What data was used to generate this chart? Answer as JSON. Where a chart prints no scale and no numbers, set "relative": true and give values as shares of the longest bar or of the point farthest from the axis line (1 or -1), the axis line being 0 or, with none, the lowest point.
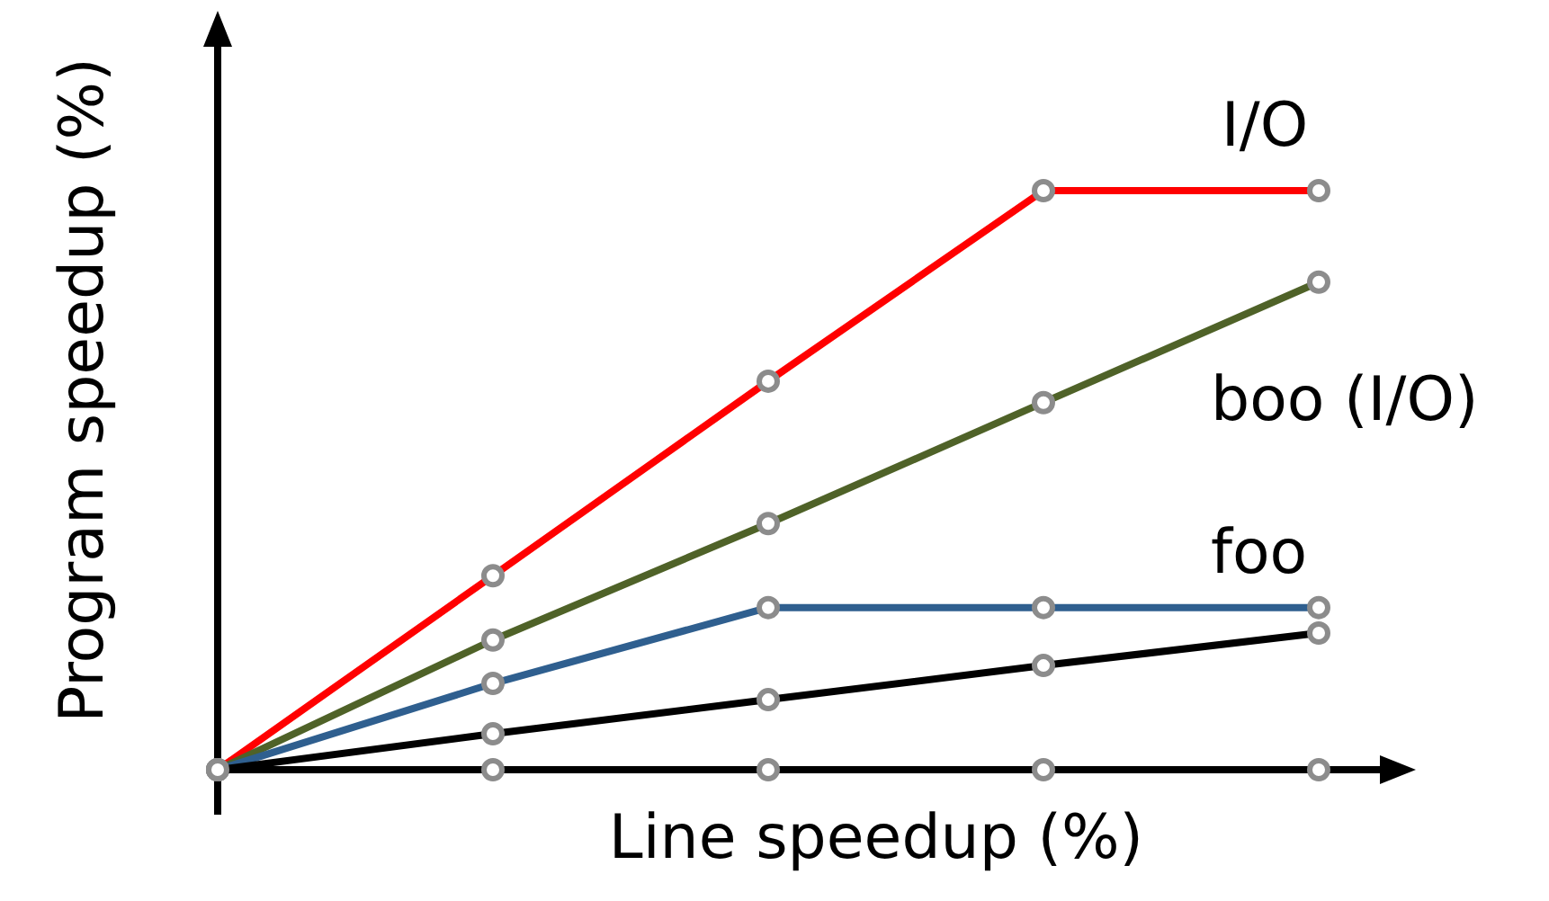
{
  "chart_data": {
    "type": "line",
    "xlabel": "Line speedup (%)",
    "ylabel": "Program speedup (%)",
    "relative": true,
    "marker": "circle",
    "categories": [
      null,
      null,
      null,
      null,
      null
    ],
    "series": [
      {
        "name": "I/O",
        "color": "#ff0000",
        "values": [
          0,
          0.335,
          0.671,
          1,
          1
        ]
      },
      {
        "name": "boo (I/O)",
        "color": "#4f6228",
        "values": [
          0,
          0.224,
          0.425,
          0.634,
          0.842
        ]
      },
      {
        "name": "foo",
        "color": "#2f5f8f",
        "values": [
          0,
          0.149,
          0.28,
          0.28,
          0.28
        ]
      },
      {
        "color": "#000000",
        "values": [
          0,
          0.062,
          0.121,
          0.18,
          0.236
        ]
      },
      {
        "color": "#000000",
        "values": [
          0,
          0,
          0,
          0,
          0
        ]
      }
    ]
  }
}
